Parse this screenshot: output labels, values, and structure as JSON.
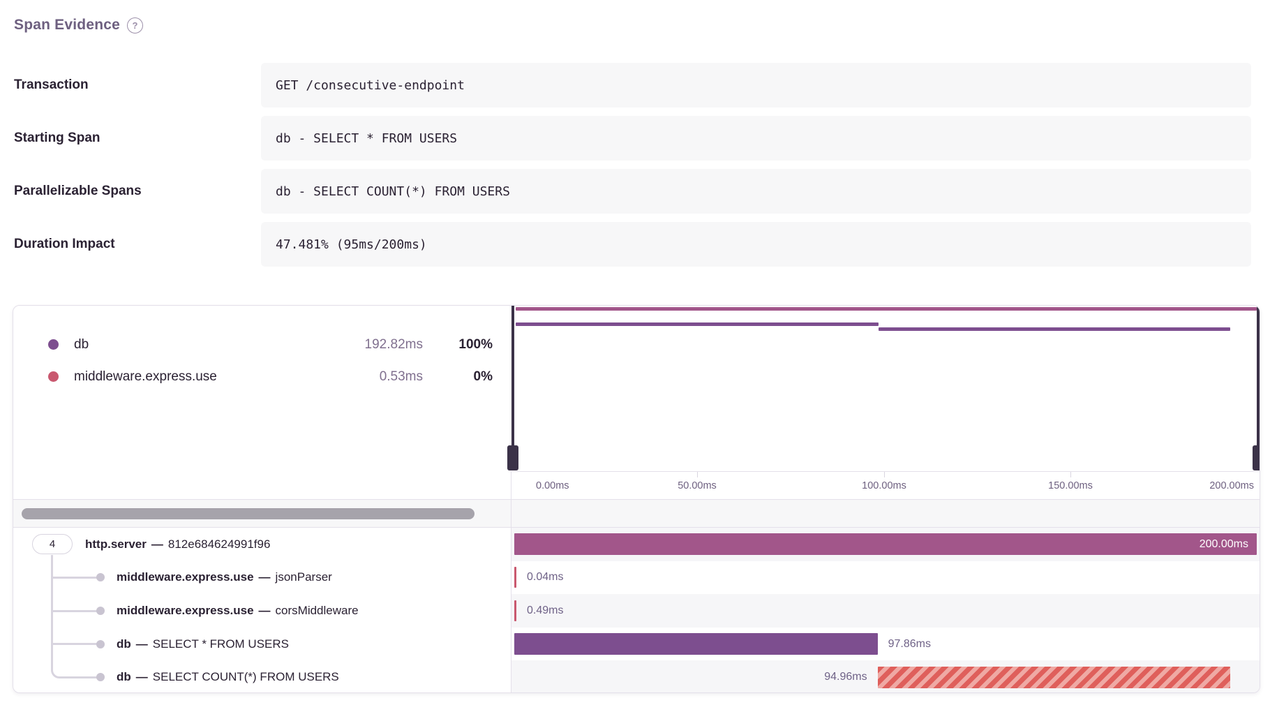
{
  "header": {
    "title": "Span Evidence",
    "help_icon": "?"
  },
  "evidence_rows": [
    {
      "label": "Transaction",
      "value": "GET /consecutive-endpoint"
    },
    {
      "label": "Starting Span",
      "value": "db - SELECT * FROM USERS"
    },
    {
      "label": "Parallelizable Spans",
      "value": "db - SELECT COUNT(*) FROM USERS"
    },
    {
      "label": "Duration Impact",
      "value": "47.481% (95ms/200ms)"
    }
  ],
  "trace": {
    "legend": [
      {
        "name": "db",
        "duration": "192.82ms",
        "percent": "100%",
        "color": "#7D4E8F"
      },
      {
        "name": "middleware.express.use",
        "duration": "0.53ms",
        "percent": "0%",
        "color": "#C9586F"
      }
    ],
    "axis": {
      "ticks": [
        "0.00ms",
        "50.00ms",
        "100.00ms",
        "150.00ms",
        "200.00ms"
      ],
      "range_ms": [
        0,
        200
      ]
    },
    "root_children_count": "4",
    "spans": [
      {
        "op": "http.server",
        "description": "812e684624991f96",
        "start_ms": 0,
        "duration_ms": 200.0,
        "duration_label": "200.00ms",
        "color": "#A2568A",
        "hatched": false,
        "label_position": "inside",
        "depth": 0
      },
      {
        "op": "middleware.express.use",
        "description": "jsonParser",
        "start_ms": 0,
        "duration_ms": 0.04,
        "duration_label": "0.04ms",
        "color": "#C9586F",
        "hatched": false,
        "label_position": "after",
        "depth": 1
      },
      {
        "op": "middleware.express.use",
        "description": "corsMiddleware",
        "start_ms": 0,
        "duration_ms": 0.49,
        "duration_label": "0.49ms",
        "color": "#C9586F",
        "hatched": false,
        "label_position": "after",
        "depth": 1
      },
      {
        "op": "db",
        "description": "SELECT * FROM USERS",
        "start_ms": 0,
        "duration_ms": 97.86,
        "duration_label": "97.86ms",
        "color": "#7D4E8F",
        "hatched": false,
        "label_position": "after",
        "depth": 1
      },
      {
        "op": "db",
        "description": "SELECT COUNT(*) FROM USERS",
        "start_ms": 97.86,
        "duration_ms": 94.96,
        "duration_label": "94.96ms",
        "color": "#DF5F5B",
        "hatched": true,
        "hatch_light": "#EFA9A4",
        "label_position": "before",
        "depth": 1
      }
    ],
    "minimap_bars": [
      {
        "op": "http.server",
        "start_ms": 0,
        "duration_ms": 200.0,
        "color": "#A2568A",
        "y": 2
      },
      {
        "op": "db",
        "start_ms": 0,
        "duration_ms": 97.86,
        "color": "#7D4E8F",
        "y": 24
      },
      {
        "op": "db",
        "start_ms": 97.86,
        "duration_ms": 94.96,
        "color": "#7D4E8F",
        "y": 31
      }
    ]
  },
  "colors": {
    "accent_purple": "#7D4E8F",
    "accent_pink": "#A2568A",
    "accent_red": "#C9586F",
    "hatch_red": "#DF5F5B",
    "handle_dark": "#3B3248",
    "border": "#E4E0EA",
    "muted_text": "#80708F"
  }
}
